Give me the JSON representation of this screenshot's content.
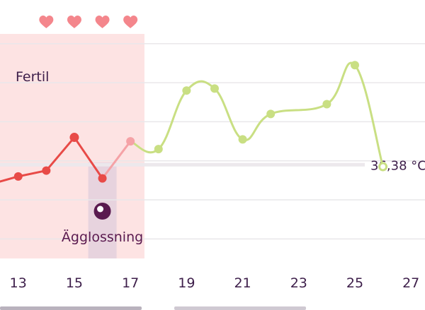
{
  "colors": {
    "fertile_window": "#fde3e3",
    "ovulation_band": "#e4d0dd",
    "ovulation_dot": "#5a1a4f",
    "heart": "#f4868c",
    "red_line": "#e84a47",
    "red_light": "#f5a2a6",
    "green_line": "#c9df83",
    "grid": "#e9e7ea",
    "coverline": "#ece8ec",
    "axis_text": "#3d1e4a"
  },
  "fertile": {
    "label": "Fertil",
    "start_day": 11.5,
    "end_day": 17.5
  },
  "ovulation": {
    "label": "Ägglossning",
    "day": 16
  },
  "hearts": [
    14,
    15,
    16,
    17
  ],
  "coverline": {
    "label": "36,38 °C",
    "value": 36.38
  },
  "chart_data": {
    "type": "line",
    "x_ticks": [
      13,
      15,
      17,
      19,
      21,
      23,
      25,
      27
    ],
    "xlim": [
      12.35,
      27.5
    ],
    "ylim": [
      35.9,
      37.05
    ],
    "grid_values": [
      36.0,
      36.2,
      36.4,
      36.6,
      36.8,
      37.0
    ],
    "series": [
      {
        "style": "red",
        "points": [
          {
            "x": 12,
            "y": 36.28
          },
          {
            "x": 13,
            "y": 36.32
          },
          {
            "x": 14,
            "y": 36.35
          },
          {
            "x": 15,
            "y": 36.52
          },
          {
            "x": 16,
            "y": 36.31
          },
          {
            "x": 17,
            "y": 36.5
          }
        ]
      },
      {
        "style": "green",
        "points": [
          {
            "x": 17,
            "y": 36.5
          },
          {
            "x": 18,
            "y": 36.46
          },
          {
            "x": 19,
            "y": 36.76
          },
          {
            "x": 20,
            "y": 36.77
          },
          {
            "x": 21,
            "y": 36.51
          },
          {
            "x": 22,
            "y": 36.64
          },
          {
            "x": 24,
            "y": 36.69
          },
          {
            "x": 25,
            "y": 36.89
          },
          {
            "x": 26,
            "y": 36.37
          }
        ]
      }
    ]
  }
}
